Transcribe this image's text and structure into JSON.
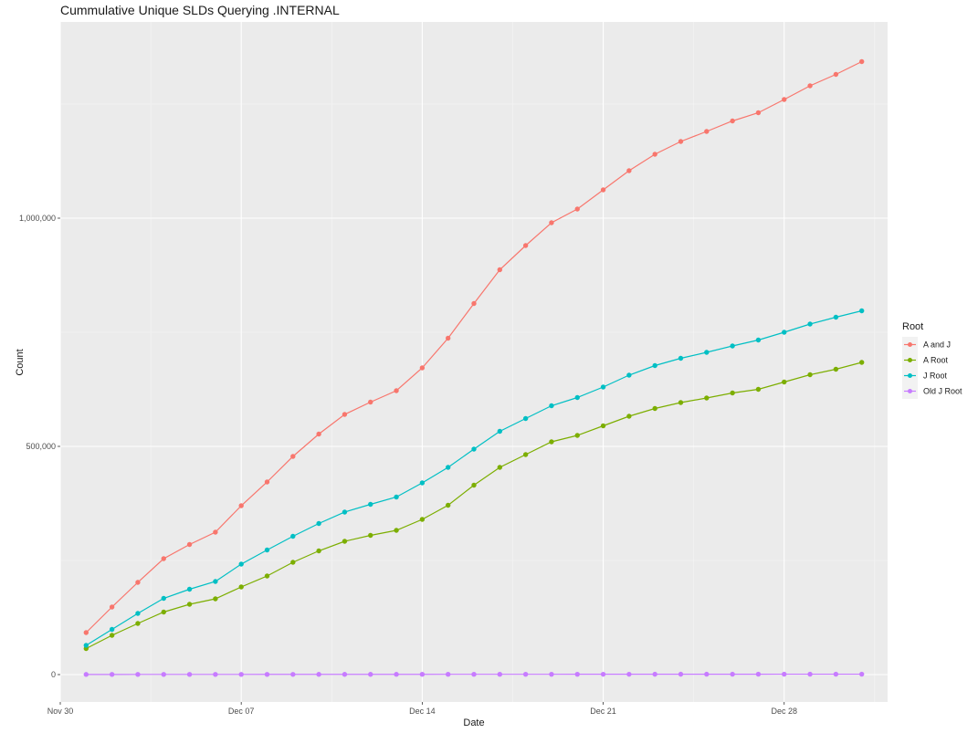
{
  "chart_data": {
    "type": "line",
    "title": "Cummulative Unique SLDs Querying .INTERNAL",
    "xlabel": "Date",
    "ylabel": "Count",
    "x_ticks": [
      "Nov 30",
      "Dec 07",
      "Dec 14",
      "Dec 21",
      "Dec 28"
    ],
    "y_ticks": [
      "0",
      "500,000",
      "1,000,000"
    ],
    "legend_title": "Root",
    "legend_position": "right",
    "grid": true,
    "x": [
      "Dec 01",
      "Dec 02",
      "Dec 03",
      "Dec 04",
      "Dec 05",
      "Dec 06",
      "Dec 07",
      "Dec 08",
      "Dec 09",
      "Dec 10",
      "Dec 11",
      "Dec 12",
      "Dec 13",
      "Dec 14",
      "Dec 15",
      "Dec 16",
      "Dec 17",
      "Dec 18",
      "Dec 19",
      "Dec 20",
      "Dec 21",
      "Dec 22",
      "Dec 23",
      "Dec 24",
      "Dec 25",
      "Dec 26",
      "Dec 27",
      "Dec 28",
      "Dec 29",
      "Dec 30",
      "Dec 31"
    ],
    "x_range": [
      "Nov 30",
      "Jan 01"
    ],
    "ylim": [
      -60000,
      1430000
    ],
    "series": [
      {
        "name": "A and J",
        "color": "#F8766D",
        "values": [
          92000,
          148000,
          202000,
          254000,
          285000,
          312000,
          370000,
          422000,
          478000,
          527000,
          570000,
          597000,
          622000,
          672000,
          737000,
          813000,
          887000,
          940000,
          990000,
          1020000,
          1062000,
          1104000,
          1140000,
          1168000,
          1190000,
          1213000,
          1231000,
          1260000,
          1290000,
          1315000,
          1343000
        ]
      },
      {
        "name": "A Root",
        "color": "#7CAE00",
        "values": [
          57000,
          86000,
          112000,
          137000,
          154000,
          166000,
          192000,
          216000,
          246000,
          271000,
          292000,
          305000,
          316000,
          340000,
          371000,
          415000,
          454000,
          482000,
          510000,
          524000,
          545000,
          566000,
          583000,
          596000,
          606000,
          617000,
          625000,
          641000,
          657000,
          669000,
          684000
        ]
      },
      {
        "name": "J Root",
        "color": "#00BFC4",
        "values": [
          64000,
          99000,
          134000,
          167000,
          187000,
          204000,
          242000,
          273000,
          303000,
          331000,
          356000,
          373000,
          389000,
          420000,
          454000,
          494000,
          533000,
          561000,
          589000,
          607000,
          630000,
          656000,
          677000,
          693000,
          706000,
          720000,
          733000,
          750000,
          768000,
          783000,
          797000
        ]
      },
      {
        "name": "Old J Root",
        "color": "#C77CFF",
        "values": [
          300,
          320,
          340,
          360,
          380,
          400,
          420,
          440,
          460,
          480,
          500,
          520,
          540,
          560,
          580,
          600,
          620,
          640,
          660,
          680,
          700,
          720,
          740,
          760,
          780,
          800,
          820,
          840,
          860,
          880,
          900
        ]
      }
    ]
  }
}
